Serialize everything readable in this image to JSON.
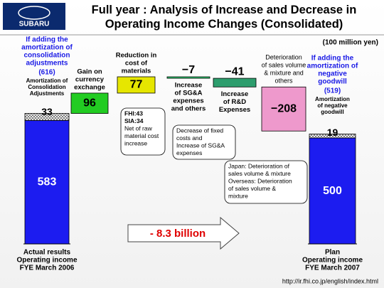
{
  "logo": "SUBARU",
  "chart_data": {
    "type": "waterfall",
    "title": "Full year : Analysis of Increase and Decrease in Operating Income Changes (Consolidated)",
    "unit": "(100 million yen)",
    "start": {
      "labels": [
        "Actual results",
        "Operating income",
        "FYE March 2006"
      ],
      "value": 583,
      "color": "#1c1cf0",
      "note": [
        "If adding the",
        "amortization of",
        "consolidation",
        "adjustments"
      ],
      "total": "(616)",
      "adjustment": {
        "label": [
          "Amortization of",
          "Consolidation",
          "Adjustments"
        ],
        "value": 33
      }
    },
    "steps": [
      {
        "label": [
          "Gain on",
          "currency",
          "exchange"
        ],
        "value": 96,
        "color": "#22cc22"
      },
      {
        "label": [
          "Reduction in",
          "cost of",
          "materials"
        ],
        "value": 77,
        "color": "#e6e600"
      },
      {
        "label": [
          "Increase",
          "of SG&A",
          "expenses",
          "and others"
        ],
        "value": -7,
        "value_label": "−7",
        "color": "#2ecc71"
      },
      {
        "label": [
          "Increase",
          "of R&D",
          "Expenses"
        ],
        "value": -41,
        "value_label": "−41",
        "color": "#2e9e6e"
      },
      {
        "label": [
          "Deterioration",
          "of sales volume",
          "& mixture and",
          "others"
        ],
        "value": -208,
        "value_label": "−208",
        "color": "#ee99cc"
      }
    ],
    "end": {
      "labels": [
        "Plan",
        "Operating income",
        "FYE March 2007"
      ],
      "value": 500,
      "color": "#1c1cf0",
      "note": [
        "If adding the",
        "amortization of",
        "negative",
        "goodwill"
      ],
      "total": "(519)",
      "adjustment": {
        "label": [
          "Amortization",
          "of negative",
          "goodwill"
        ],
        "value": 19
      }
    },
    "callouts": [
      [
        "FHI:43",
        "SIA:34",
        "Net of raw",
        "material cost",
        "increase"
      ],
      [
        "Decrease of fixed",
        "costs and",
        "Increase of SG&A",
        "expenses"
      ],
      [
        "Japan: Deterioration of",
        "sales volume & mixture",
        "Overseas: Deterioration",
        "of sales volume &",
        "mixture"
      ]
    ],
    "arrow_label": "- 8.3 billion"
  },
  "url": "http://ir.fhi.co.jp/english/index.html"
}
